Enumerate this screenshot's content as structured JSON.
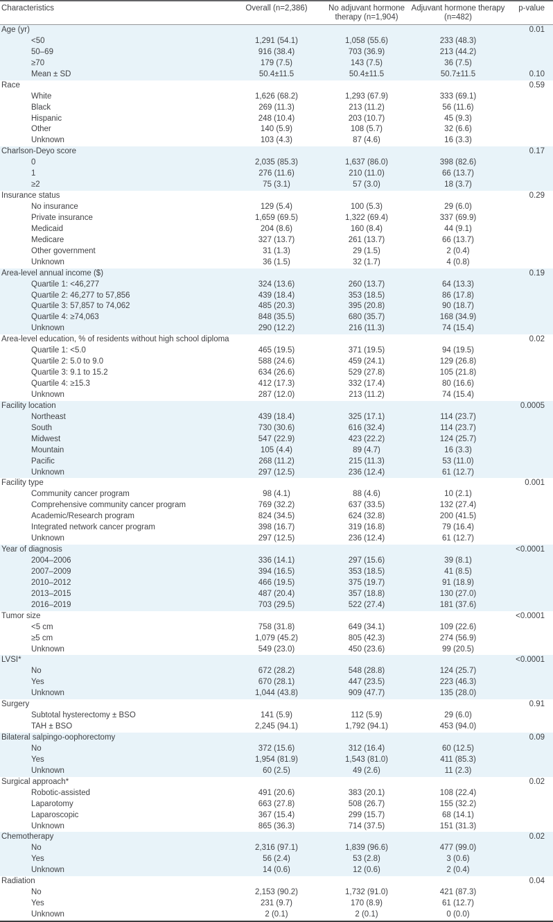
{
  "accent_colors": {
    "band_blue": "#e8f3f9",
    "text": "#404144",
    "rule_top": "#626366",
    "rule_mid": "#949598",
    "rule_bottom": "#3b3c3e"
  },
  "header": {
    "characteristics": "Characteristics",
    "overall": "Overall (n=2,386)",
    "no_adjuvant_line1": "No adjuvant hormone",
    "no_adjuvant_line2": "therapy (n=1,904)",
    "adjuvant_line1": "Adjuvant hormone therapy",
    "adjuvant_line2": "(n=482)",
    "pvalue": "p-value"
  },
  "table": {
    "sections": [
      {
        "label": "Age (yr)",
        "p": "0.01",
        "shaded": true,
        "rows": [
          [
            "<50",
            "1,291 (54.1)",
            "1,058 (55.6)",
            "233 (48.3)",
            ""
          ],
          [
            "50–69",
            "916 (38.4)",
            "703 (36.9)",
            "213 (44.2)",
            ""
          ],
          [
            "≥70",
            "179 (7.5)",
            "143 (7.5)",
            "36 (7.5)",
            ""
          ],
          [
            "Mean ± SD",
            "50.4±11.5",
            "50.4±11.5",
            "50.7±11.5",
            "0.10"
          ]
        ]
      },
      {
        "label": "Race",
        "p": "0.59",
        "shaded": false,
        "rows": [
          [
            "White",
            "1,626 (68.2)",
            "1,293 (67.9)",
            "333 (69.1)",
            ""
          ],
          [
            "Black",
            "269 (11.3)",
            "213 (11.2)",
            "56 (11.6)",
            ""
          ],
          [
            "Hispanic",
            "248 (10.4)",
            "203 (10.7)",
            "45 (9.3)",
            ""
          ],
          [
            "Other",
            "140 (5.9)",
            "108 (5.7)",
            "32 (6.6)",
            ""
          ],
          [
            "Unknown",
            "103 (4.3)",
            "87 (4.6)",
            "16 (3.3)",
            ""
          ]
        ]
      },
      {
        "label": "Charlson-Deyo score",
        "p": "0.17",
        "shaded": true,
        "rows": [
          [
            "0",
            "2,035 (85.3)",
            "1,637 (86.0)",
            "398 (82.6)",
            ""
          ],
          [
            "1",
            "276 (11.6)",
            "210 (11.0)",
            "66 (13.7)",
            ""
          ],
          [
            "≥2",
            "75 (3.1)",
            "57 (3.0)",
            "18 (3.7)",
            ""
          ]
        ]
      },
      {
        "label": "Insurance status",
        "p": "0.29",
        "shaded": false,
        "rows": [
          [
            "No insurance",
            "129 (5.4)",
            "100 (5.3)",
            "29 (6.0)",
            ""
          ],
          [
            "Private insurance",
            "1,659 (69.5)",
            "1,322 (69.4)",
            "337 (69.9)",
            ""
          ],
          [
            "Medicaid",
            "204 (8.6)",
            "160 (8.4)",
            "44 (9.1)",
            ""
          ],
          [
            "Medicare",
            "327 (13.7)",
            "261 (13.7)",
            "66 (13.7)",
            ""
          ],
          [
            "Other government",
            "31 (1.3)",
            "29 (1.5)",
            "2 (0.4)",
            ""
          ],
          [
            "Unknown",
            "36 (1.5)",
            "32 (1.7)",
            "4 (0.8)",
            ""
          ]
        ]
      },
      {
        "label": "Area-level annual income ($)",
        "p": "0.19",
        "shaded": true,
        "rows": [
          [
            "Quartile 1: <46,277",
            "324 (13.6)",
            "260 (13.7)",
            "64 (13.3)",
            ""
          ],
          [
            "Quartile 2: 46,277 to 57,856",
            "439 (18.4)",
            "353 (18.5)",
            "86 (17.8)",
            ""
          ],
          [
            "Quartile 3: 57,857 to 74,062",
            "485 (20.3)",
            "395 (20.8)",
            "90 (18.7)",
            ""
          ],
          [
            "Quartile 4: ≥74,063",
            "848 (35.5)",
            "680 (35.7)",
            "168 (34.9)",
            ""
          ],
          [
            "Unknown",
            "290 (12.2)",
            "216 (11.3)",
            "74 (15.4)",
            ""
          ]
        ]
      },
      {
        "label": "Area-level education, % of residents without high school diploma",
        "p": "0.02",
        "shaded": false,
        "rows": [
          [
            "Quartile 1: <5.0",
            "465 (19.5)",
            "371 (19.5)",
            "94 (19.5)",
            ""
          ],
          [
            "Quartile 2: 5.0 to 9.0",
            "588 (24.6)",
            "459 (24.1)",
            "129 (26.8)",
            ""
          ],
          [
            "Quartile 3: 9.1 to 15.2",
            "634 (26.6)",
            "529 (27.8)",
            "105 (21.8)",
            ""
          ],
          [
            "Quartile 4: ≥15.3",
            "412 (17.3)",
            "332 (17.4)",
            "80 (16.6)",
            ""
          ],
          [
            "Unknown",
            "287 (12.0)",
            "213 (11.2)",
            "74 (15.4)",
            ""
          ]
        ]
      },
      {
        "label": "Facility location",
        "p": "0.0005",
        "shaded": true,
        "rows": [
          [
            "Northeast",
            "439 (18.4)",
            "325 (17.1)",
            "114 (23.7)",
            ""
          ],
          [
            "South",
            "730 (30.6)",
            "616 (32.4)",
            "114 (23.7)",
            ""
          ],
          [
            "Midwest",
            "547 (22.9)",
            "423 (22.2)",
            "124 (25.7)",
            ""
          ],
          [
            "Mountain",
            "105 (4.4)",
            "89 (4.7)",
            "16 (3.3)",
            ""
          ],
          [
            "Pacific",
            "268 (11.2)",
            "215 (11.3)",
            "53 (11.0)",
            ""
          ],
          [
            "Unknown",
            "297 (12.5)",
            "236 (12.4)",
            "61 (12.7)",
            ""
          ]
        ]
      },
      {
        "label": "Facility type",
        "p": "0.001",
        "shaded": false,
        "rows": [
          [
            "Community cancer program",
            "98 (4.1)",
            "88 (4.6)",
            "10 (2.1)",
            ""
          ],
          [
            "Comprehensive community cancer program",
            "769 (32.2)",
            "637 (33.5)",
            "132 (27.4)",
            ""
          ],
          [
            "Academic/Research program",
            "824 (34.5)",
            "624 (32.8)",
            "200 (41.5)",
            ""
          ],
          [
            "Integrated network cancer program",
            "398 (16.7)",
            "319 (16.8)",
            "79 (16.4)",
            ""
          ],
          [
            "Unknown",
            "297 (12.5)",
            "236 (12.4)",
            "61 (12.7)",
            ""
          ]
        ]
      },
      {
        "label": "Year of diagnosis",
        "p": "<0.0001",
        "shaded": true,
        "rows": [
          [
            "2004–2006",
            "336 (14.1)",
            "297 (15.6)",
            "39 (8.1)",
            ""
          ],
          [
            "2007–2009",
            "394 (16.5)",
            "353 (18.5)",
            "41 (8.5)",
            ""
          ],
          [
            "2010–2012",
            "466 (19.5)",
            "375 (19.7)",
            "91 (18.9)",
            ""
          ],
          [
            "2013–2015",
            "487 (20.4)",
            "357 (18.8)",
            "130 (27.0)",
            ""
          ],
          [
            "2016–2019",
            "703 (29.5)",
            "522 (27.4)",
            "181 (37.6)",
            ""
          ]
        ]
      },
      {
        "label": "Tumor size",
        "p": "<0.0001",
        "shaded": false,
        "rows": [
          [
            "<5 cm",
            "758 (31.8)",
            "649 (34.1)",
            "109 (22.6)",
            ""
          ],
          [
            "≥5 cm",
            "1,079 (45.2)",
            "805 (42.3)",
            "274 (56.9)",
            ""
          ],
          [
            "Unknown",
            "549 (23.0)",
            "450 (23.6)",
            "99 (20.5)",
            ""
          ]
        ]
      },
      {
        "label": "LVSI*",
        "p": "<0.0001",
        "shaded": true,
        "rows": [
          [
            "No",
            "672 (28.2)",
            "548 (28.8)",
            "124 (25.7)",
            ""
          ],
          [
            "Yes",
            "670 (28.1)",
            "447 (23.5)",
            "223 (46.3)",
            ""
          ],
          [
            "Unknown",
            "1,044 (43.8)",
            "909 (47.7)",
            "135 (28.0)",
            ""
          ]
        ]
      },
      {
        "label": "Surgery",
        "p": "0.91",
        "shaded": false,
        "rows": [
          [
            "Subtotal hysterectomy ± BSO",
            "141 (5.9)",
            "112 (5.9)",
            "29 (6.0)",
            ""
          ],
          [
            "TAH ± BSO",
            "2,245 (94.1)",
            "1,792 (94.1)",
            "453 (94.0)",
            ""
          ]
        ]
      },
      {
        "label": "Bilateral salpingo-oophorectomy",
        "p": "0.09",
        "shaded": true,
        "rows": [
          [
            "No",
            "372 (15.6)",
            "312 (16.4)",
            "60 (12.5)",
            ""
          ],
          [
            "Yes",
            "1,954 (81.9)",
            "1,543 (81.0)",
            "411 (85.3)",
            ""
          ],
          [
            "Unknown",
            "60 (2.5)",
            "49 (2.6)",
            "11 (2.3)",
            ""
          ]
        ]
      },
      {
        "label": "Surgical approach*",
        "p": "0.02",
        "shaded": false,
        "rows": [
          [
            "Robotic-assisted",
            "491 (20.6)",
            "383 (20.1)",
            "108 (22.4)",
            ""
          ],
          [
            "Laparotomy",
            "663 (27.8)",
            "508 (26.7)",
            "155 (32.2)",
            ""
          ],
          [
            "Laparoscopic",
            "367 (15.4)",
            "299 (15.7)",
            "68 (14.1)",
            ""
          ],
          [
            "Unknown",
            "865 (36.3)",
            "714 (37.5)",
            "151 (31.3)",
            ""
          ]
        ]
      },
      {
        "label": "Chemotherapy",
        "p": "0.02",
        "shaded": true,
        "rows": [
          [
            "No",
            "2,316 (97.1)",
            "1,839 (96.6)",
            "477 (99.0)",
            ""
          ],
          [
            "Yes",
            "56 (2.4)",
            "53 (2.8)",
            "3 (0.6)",
            ""
          ],
          [
            "Unknown",
            "14 (0.6)",
            "12 (0.6)",
            "2 (0.4)",
            ""
          ]
        ]
      },
      {
        "label": "Radiation",
        "p": "0.04",
        "shaded": false,
        "rows": [
          [
            "No",
            "2,153 (90.2)",
            "1,732 (91.0)",
            "421 (87.3)",
            ""
          ],
          [
            "Yes",
            "231 (9.7)",
            "170 (8.9)",
            "61 (12.7)",
            ""
          ],
          [
            "Unknown",
            "2 (0.1)",
            "2 (0.1)",
            "0 (0.0)",
            ""
          ]
        ]
      }
    ]
  }
}
